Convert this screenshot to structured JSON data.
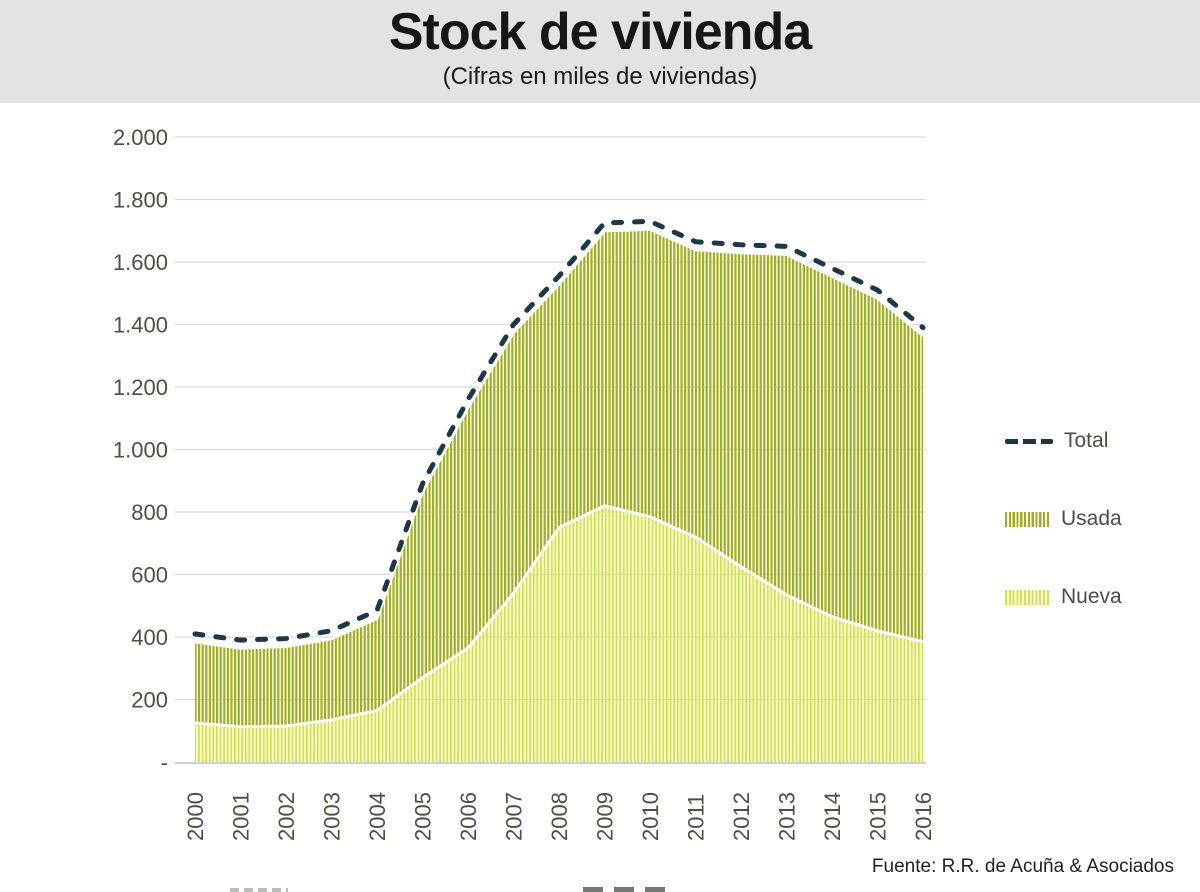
{
  "header": {
    "title": "Stock de vivienda",
    "subtitle": "(Cifras en miles de viviendas)"
  },
  "legend": [
    {
      "id": "total",
      "label": "Total"
    },
    {
      "id": "usada",
      "label": "Usada"
    },
    {
      "id": "nueva",
      "label": "Nueva"
    }
  ],
  "source": {
    "label": "Fuente: R.R. de Acuña & Asociados"
  },
  "colors": {
    "header_bg": "#e3e3e3",
    "total_line": "#1d3845",
    "usada_hatch": "#9cb119",
    "nueva_hatch": "#d2e637",
    "gridline": "#d9d9d9",
    "axis_line": "#cfcfcf",
    "tick_label": "#4f4e41",
    "legend_label": "#4e4d45"
  },
  "chart_data": {
    "type": "area",
    "title": "Stock de vivienda",
    "subtitle": "(Cifras en miles de viviendas)",
    "x": [
      2000,
      2001,
      2002,
      2003,
      2004,
      2005,
      2006,
      2007,
      2008,
      2009,
      2010,
      2011,
      2012,
      2013,
      2014,
      2015,
      2016
    ],
    "x_tick_labels": [
      "2000",
      "2001",
      "2002",
      "2003",
      "2004",
      "2005",
      "2006",
      "2007",
      "2008",
      "2009",
      "2010",
      "2011",
      "2012",
      "2013",
      "2014",
      "2015",
      "2016"
    ],
    "series": [
      {
        "name": "Total",
        "style": "dashed-line",
        "values": [
          410,
          390,
          395,
          420,
          485,
          890,
          1160,
          1400,
          1555,
          1725,
          1730,
          1665,
          1655,
          1650,
          1580,
          1510,
          1390
        ]
      },
      {
        "name": "Usada",
        "style": "stacked-area-vertical-hatch",
        "values": [
          285,
          277,
          280,
          285,
          320,
          620,
          795,
          860,
          805,
          905,
          945,
          945,
          1030,
          1115,
          1115,
          1090,
          1005
        ]
      },
      {
        "name": "Nueva",
        "style": "stacked-area-vertical-hatch",
        "values": [
          125,
          113,
          115,
          135,
          165,
          270,
          365,
          540,
          750,
          820,
          785,
          720,
          625,
          535,
          465,
          420,
          385
        ]
      }
    ],
    "ylim": [
      0,
      2000
    ],
    "y_step": 200,
    "y_tick_labels": [
      "2.000",
      "1.800",
      "1.600",
      "1.400",
      "1.200",
      "1.000",
      "800",
      "600",
      "400",
      "200",
      "-"
    ],
    "grid": true,
    "legend_position": "right",
    "source": "Fuente: R.R. de Acuña & Asociados"
  }
}
